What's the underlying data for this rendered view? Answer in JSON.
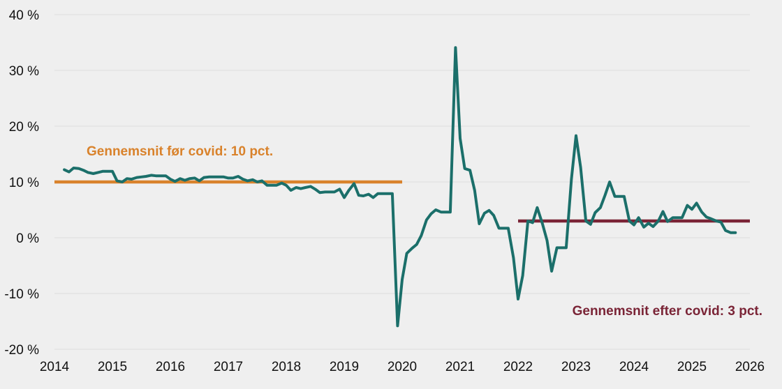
{
  "chart_data": {
    "type": "line",
    "title": "",
    "xlabel": "",
    "ylabel": "",
    "xlim": [
      2014,
      2026
    ],
    "ylim": [
      -20,
      40
    ],
    "grid": true,
    "y_ticks": [
      {
        "value": 40,
        "label": "40 %"
      },
      {
        "value": 30,
        "label": "30 %"
      },
      {
        "value": 20,
        "label": "20 %"
      },
      {
        "value": 10,
        "label": "10 %"
      },
      {
        "value": 0,
        "label": "0 %"
      },
      {
        "value": -10,
        "label": "-10 %"
      },
      {
        "value": -20,
        "label": "-20 %"
      }
    ],
    "x_ticks": [
      {
        "value": 2014,
        "label": "2014"
      },
      {
        "value": 2015,
        "label": "2015"
      },
      {
        "value": 2016,
        "label": "2016"
      },
      {
        "value": 2017,
        "label": "2017"
      },
      {
        "value": 2018,
        "label": "2018"
      },
      {
        "value": 2019,
        "label": "2019"
      },
      {
        "value": 2020,
        "label": "2020"
      },
      {
        "value": 2021,
        "label": "2021"
      },
      {
        "value": 2022,
        "label": "2022"
      },
      {
        "value": 2023,
        "label": "2023"
      },
      {
        "value": 2024,
        "label": "2024"
      },
      {
        "value": 2025,
        "label": "2025"
      },
      {
        "value": 2026,
        "label": "2026"
      }
    ],
    "series": [
      {
        "color": "#1b6f6a",
        "points": [
          [
            2014.17,
            12.2
          ],
          [
            2014.25,
            11.8
          ],
          [
            2014.33,
            12.5
          ],
          [
            2014.42,
            12.4
          ],
          [
            2014.5,
            12.1
          ],
          [
            2014.58,
            11.7
          ],
          [
            2014.67,
            11.5
          ],
          [
            2014.75,
            11.7
          ],
          [
            2014.83,
            11.9
          ],
          [
            2014.92,
            11.9
          ],
          [
            2015.0,
            11.9
          ],
          [
            2015.08,
            10.2
          ],
          [
            2015.17,
            10.0
          ],
          [
            2015.25,
            10.6
          ],
          [
            2015.33,
            10.5
          ],
          [
            2015.42,
            10.8
          ],
          [
            2015.5,
            10.9
          ],
          [
            2015.58,
            11.0
          ],
          [
            2015.67,
            11.2
          ],
          [
            2015.75,
            11.1
          ],
          [
            2015.83,
            11.1
          ],
          [
            2015.92,
            11.1
          ],
          [
            2016.0,
            10.5
          ],
          [
            2016.08,
            10.1
          ],
          [
            2016.17,
            10.6
          ],
          [
            2016.25,
            10.3
          ],
          [
            2016.33,
            10.6
          ],
          [
            2016.42,
            10.7
          ],
          [
            2016.5,
            10.2
          ],
          [
            2016.58,
            10.8
          ],
          [
            2016.67,
            10.9
          ],
          [
            2016.75,
            10.9
          ],
          [
            2016.83,
            10.9
          ],
          [
            2016.92,
            10.9
          ],
          [
            2017.0,
            10.7
          ],
          [
            2017.08,
            10.7
          ],
          [
            2017.17,
            11.0
          ],
          [
            2017.25,
            10.5
          ],
          [
            2017.33,
            10.2
          ],
          [
            2017.42,
            10.4
          ],
          [
            2017.5,
            10.0
          ],
          [
            2017.58,
            10.2
          ],
          [
            2017.67,
            9.4
          ],
          [
            2017.75,
            9.4
          ],
          [
            2017.83,
            9.4
          ],
          [
            2017.92,
            9.8
          ],
          [
            2018.0,
            9.4
          ],
          [
            2018.08,
            8.5
          ],
          [
            2018.17,
            9.0
          ],
          [
            2018.25,
            8.8
          ],
          [
            2018.33,
            9.0
          ],
          [
            2018.42,
            9.2
          ],
          [
            2018.5,
            8.7
          ],
          [
            2018.58,
            8.1
          ],
          [
            2018.67,
            8.2
          ],
          [
            2018.75,
            8.2
          ],
          [
            2018.83,
            8.2
          ],
          [
            2018.92,
            8.7
          ],
          [
            2019.0,
            7.2
          ],
          [
            2019.08,
            8.5
          ],
          [
            2019.17,
            9.7
          ],
          [
            2019.25,
            7.6
          ],
          [
            2019.33,
            7.5
          ],
          [
            2019.42,
            7.8
          ],
          [
            2019.5,
            7.2
          ],
          [
            2019.58,
            7.9
          ],
          [
            2019.67,
            7.9
          ],
          [
            2019.75,
            7.9
          ],
          [
            2019.83,
            7.9
          ],
          [
            2019.92,
            -15.8
          ],
          [
            2020.0,
            -7.5
          ],
          [
            2020.08,
            -2.8
          ],
          [
            2020.17,
            -1.9
          ],
          [
            2020.25,
            -1.2
          ],
          [
            2020.33,
            0.4
          ],
          [
            2020.42,
            3.2
          ],
          [
            2020.5,
            4.3
          ],
          [
            2020.58,
            5.0
          ],
          [
            2020.67,
            4.6
          ],
          [
            2020.75,
            4.6
          ],
          [
            2020.83,
            4.6
          ],
          [
            2020.92,
            34.1
          ],
          [
            2021.0,
            17.8
          ],
          [
            2021.08,
            12.4
          ],
          [
            2021.17,
            12.1
          ],
          [
            2021.25,
            8.5
          ],
          [
            2021.33,
            2.5
          ],
          [
            2021.42,
            4.4
          ],
          [
            2021.5,
            4.9
          ],
          [
            2021.58,
            4.0
          ],
          [
            2021.67,
            1.7
          ],
          [
            2021.75,
            1.7
          ],
          [
            2021.83,
            1.7
          ],
          [
            2021.92,
            -3.6
          ],
          [
            2022.0,
            -11.0
          ],
          [
            2022.08,
            -6.8
          ],
          [
            2022.17,
            3.0
          ],
          [
            2022.25,
            2.7
          ],
          [
            2022.33,
            5.4
          ],
          [
            2022.42,
            2.5
          ],
          [
            2022.5,
            -0.5
          ],
          [
            2022.58,
            -6.0
          ],
          [
            2022.67,
            -1.8
          ],
          [
            2022.75,
            -1.8
          ],
          [
            2022.83,
            -1.8
          ],
          [
            2022.92,
            10.5
          ],
          [
            2023.0,
            18.3
          ],
          [
            2023.08,
            12.6
          ],
          [
            2023.17,
            3.0
          ],
          [
            2023.25,
            2.4
          ],
          [
            2023.33,
            4.5
          ],
          [
            2023.42,
            5.4
          ],
          [
            2023.5,
            7.6
          ],
          [
            2023.58,
            10.0
          ],
          [
            2023.67,
            7.4
          ],
          [
            2023.75,
            7.4
          ],
          [
            2023.83,
            7.4
          ],
          [
            2023.92,
            3.0
          ],
          [
            2024.0,
            2.3
          ],
          [
            2024.08,
            3.6
          ],
          [
            2024.17,
            1.9
          ],
          [
            2024.25,
            2.6
          ],
          [
            2024.33,
            2.0
          ],
          [
            2024.42,
            3.0
          ],
          [
            2024.5,
            4.7
          ],
          [
            2024.58,
            2.9
          ],
          [
            2024.67,
            3.6
          ],
          [
            2024.75,
            3.6
          ],
          [
            2024.83,
            3.6
          ],
          [
            2024.92,
            5.8
          ],
          [
            2025.0,
            5.1
          ],
          [
            2025.08,
            6.2
          ],
          [
            2025.17,
            4.6
          ],
          [
            2025.25,
            3.7
          ],
          [
            2025.33,
            3.4
          ],
          [
            2025.42,
            3.0
          ],
          [
            2025.5,
            2.8
          ],
          [
            2025.58,
            1.3
          ],
          [
            2025.67,
            0.9
          ],
          [
            2025.75,
            0.9
          ]
        ]
      }
    ],
    "reference_lines": [
      {
        "label": "Gennemsnit før covid: 10 pct.",
        "value": 10,
        "x_range": [
          2014,
          2020
        ],
        "color": "#d9822b"
      },
      {
        "label": "Gennemsnit efter covid: 3 pct.",
        "value": 3,
        "x_range": [
          2022,
          2026
        ],
        "color": "#7a2436"
      }
    ]
  }
}
